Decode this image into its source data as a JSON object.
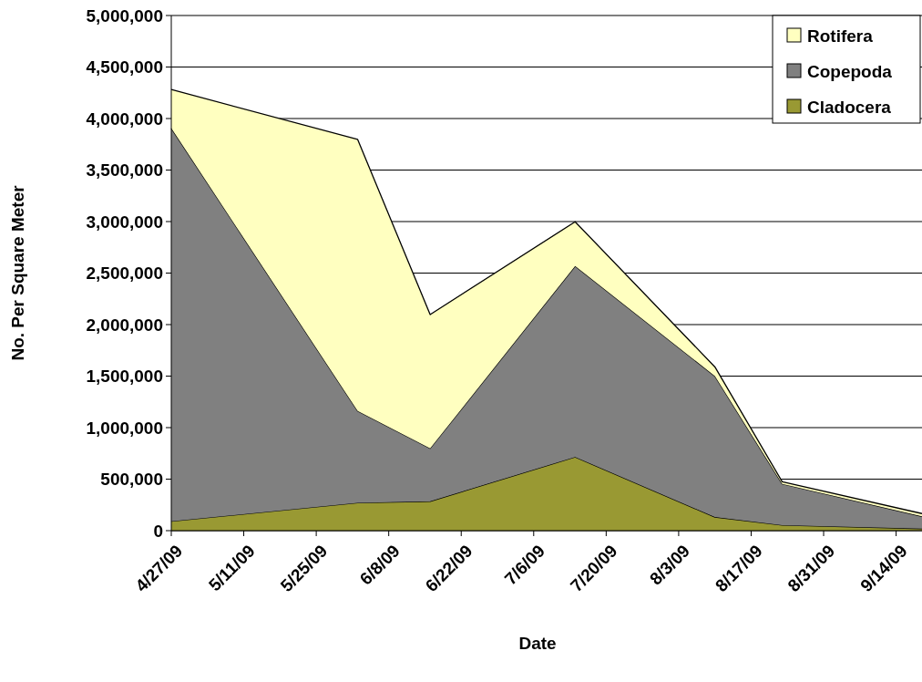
{
  "chart_data": {
    "type": "area",
    "stacked": true,
    "xlabel": "Date",
    "ylabel": "No. Per Square Meter",
    "x": [
      "2009-04-27",
      "2009-06-02",
      "2009-06-16",
      "2009-07-14",
      "2009-08-10",
      "2009-08-23",
      "2009-09-19"
    ],
    "series": [
      {
        "name": "Cladocera",
        "color": "#999933",
        "values": [
          91000,
          271000,
          285000,
          715000,
          132000,
          54000,
          20000
        ]
      },
      {
        "name": "Copepoda",
        "color": "#808080",
        "values": [
          3815000,
          891000,
          514000,
          1853000,
          1369000,
          400000,
          119000
        ]
      },
      {
        "name": "Rotifera",
        "color": "#ffffc0",
        "values": [
          376000,
          2635000,
          1298000,
          430000,
          88000,
          20000,
          27000
        ]
      }
    ],
    "xlim": [
      "2009-04-27",
      "2009-09-19"
    ],
    "xticks": [
      {
        "value": "2009-04-27",
        "label": "4/27/09"
      },
      {
        "value": "2009-05-11",
        "label": "5/11/09"
      },
      {
        "value": "2009-05-25",
        "label": "5/25/09"
      },
      {
        "value": "2009-06-08",
        "label": "6/8/09"
      },
      {
        "value": "2009-06-22",
        "label": "6/22/09"
      },
      {
        "value": "2009-07-06",
        "label": "7/6/09"
      },
      {
        "value": "2009-07-20",
        "label": "7/20/09"
      },
      {
        "value": "2009-08-03",
        "label": "8/3/09"
      },
      {
        "value": "2009-08-17",
        "label": "8/17/09"
      },
      {
        "value": "2009-08-31",
        "label": "8/31/09"
      },
      {
        "value": "2009-09-14",
        "label": "9/14/09"
      }
    ],
    "ylim": [
      0,
      5000000
    ],
    "yticks": [
      {
        "value": 0,
        "label": "0"
      },
      {
        "value": 500000,
        "label": "500,000"
      },
      {
        "value": 1000000,
        "label": "1,000,000"
      },
      {
        "value": 1500000,
        "label": "1,500,000"
      },
      {
        "value": 2000000,
        "label": "2,000,000"
      },
      {
        "value": 2500000,
        "label": "2,500,000"
      },
      {
        "value": 3000000,
        "label": "3,000,000"
      },
      {
        "value": 3500000,
        "label": "3,500,000"
      },
      {
        "value": 4000000,
        "label": "4,000,000"
      },
      {
        "value": 4500000,
        "label": "4,500,000"
      },
      {
        "value": 5000000,
        "label": "5,000,000"
      }
    ],
    "grid": "y",
    "legend": "top right"
  }
}
